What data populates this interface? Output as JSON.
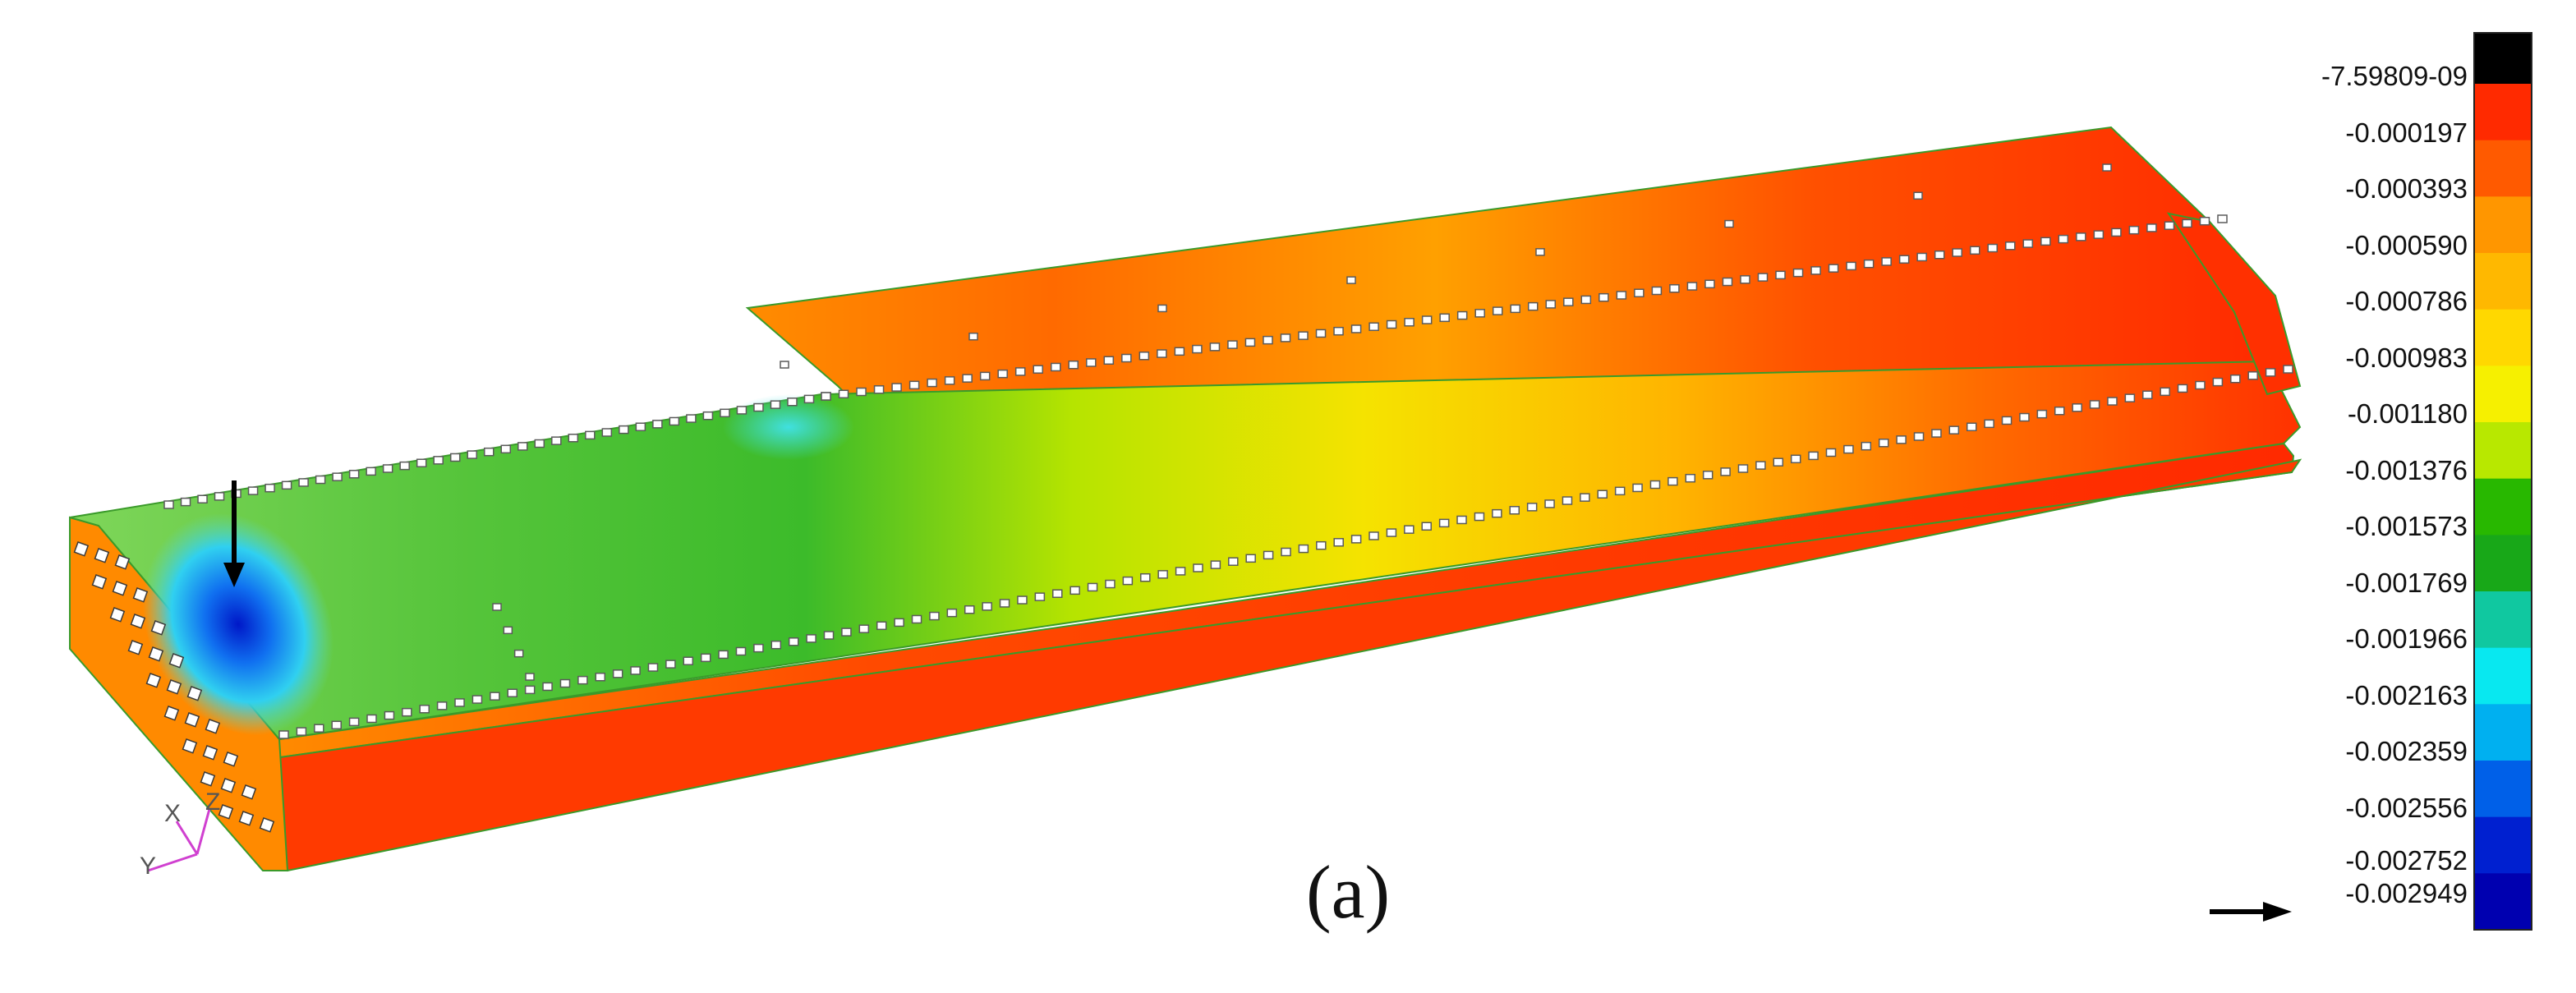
{
  "figure": {
    "caption": "(a)",
    "triad": {
      "x": "X",
      "y": "Y",
      "z": "Z"
    }
  },
  "colorbar": {
    "labels": [
      "-7.59809-09",
      "-0.000197",
      "-0.000393",
      "-0.000590",
      "-0.000786",
      "-0.000983",
      "-0.001180",
      "-0.001376",
      "-0.001573",
      "-0.001769",
      "-0.001966",
      "-0.002163",
      "-0.002359",
      "-0.002556",
      "-0.002752",
      "-0.002949"
    ],
    "bands": [
      "#000000",
      "#ff2a00",
      "#ff5a00",
      "#ff9600",
      "#ffb800",
      "#ffd800",
      "#f6f000",
      "#b8e800",
      "#28b800",
      "#18a818",
      "#10c8a0",
      "#08e8f0",
      "#00b0f0",
      "#0060e8",
      "#0020d0",
      "#0000b0"
    ]
  },
  "markers": {
    "load_arrow": "down-arrow-icon",
    "min_pointer": "right-arrow-icon"
  }
}
